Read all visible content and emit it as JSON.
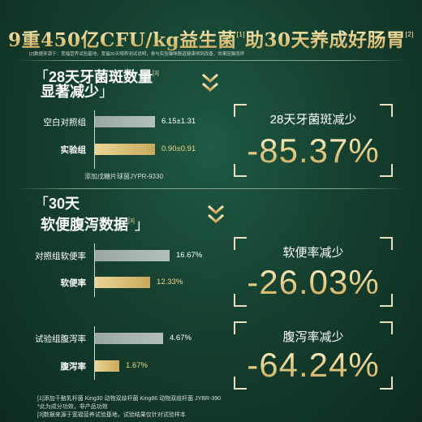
{
  "header": {
    "title": "9重450亿CFU/kg益生菌",
    "title_sup1": "[1]",
    "title_rest": "助30天养成好肠胃",
    "title_sup2": "[2]",
    "subnote": "[2]数据来源于：宽福营养试验基地，宽福30天喂养测试说明，参与实验猫咪肠道健康得到改善，效果因猫而异"
  },
  "section1": {
    "heading_line1": "28天牙菌斑数量",
    "heading_sup": "[3]",
    "heading_line2": "显著减少",
    "bracket_open": "「",
    "bracket_close": "」",
    "rows": [
      {
        "label": "空白对照组",
        "value_text": "6.15±1.31",
        "value": 6.15,
        "style": "grey"
      },
      {
        "label": "实验组",
        "value_text": "0.90±0.91",
        "value": 0.9,
        "style": "gold"
      }
    ],
    "caption": "添加戊糖片球菌JYPR-9330",
    "result_label": "28天牙菌斑减少",
    "result_value": "-85.37%"
  },
  "section2": {
    "bracket_open": "「",
    "heading_line1": "30天",
    "heading_line2": "软便腹泻数据",
    "heading_sup": "[3]",
    "bracket_close": "」",
    "group1": {
      "rows": [
        {
          "label": "对照组软便率",
          "value_text": "16.67%",
          "value": 16.67,
          "style": "grey"
        },
        {
          "label": "软便率",
          "value_text": "12.33%",
          "value": 12.33,
          "style": "gold"
        }
      ],
      "result_label": "软便率减少",
      "result_value": "-26.03%"
    },
    "group2": {
      "rows": [
        {
          "label": "试验组腹泻率",
          "value_text": "4.67%",
          "value": 4.67,
          "style": "grey"
        },
        {
          "label": "腹泻率",
          "value_text": "1.67%",
          "value": 1.67,
          "style": "gold"
        }
      ],
      "result_label": "腹泻率减少",
      "result_value": "-64.24%"
    }
  },
  "footnotes": [
    "[1]添加干酪乳杆菌 King30 动物双歧杆菌 King86 动物双歧杆菌 JYBR-390",
    "*此为成分功效，非产品功效",
    "[3]数据来源于宽福营养试验基地，试验结果仅针对试验样本"
  ],
  "icons": {
    "arrow": "chevron-down-icon"
  },
  "colors": {
    "background": "#15402f",
    "gold": "#e8d59a",
    "grey_bar": "#a6b3ae"
  }
}
